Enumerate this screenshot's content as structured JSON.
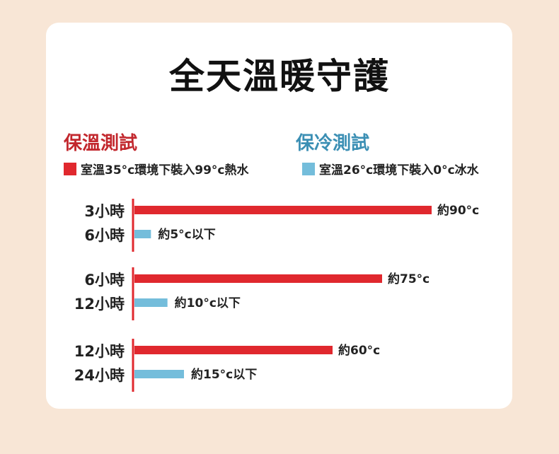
{
  "title": "全天溫暖守護",
  "hot_test": {
    "heading": "保溫測試",
    "legend": "室溫35°c環境下裝入99°c熱水",
    "color": "#e0282e"
  },
  "cold_test": {
    "heading": "保冷測試",
    "legend": "室溫26°c環境下裝入0°c冰水",
    "color": "#74bddb"
  },
  "chart_data": {
    "type": "bar",
    "orientation": "horizontal",
    "groups": [
      {
        "hot_label": "3小時",
        "cold_label": "6小時",
        "hot_value": 90,
        "cold_value": 5,
        "hot_text": "約90°c",
        "cold_text": "約5°c以下"
      },
      {
        "hot_label": "6小時",
        "cold_label": "12小時",
        "hot_value": 75,
        "cold_value": 10,
        "hot_text": "約75°c",
        "cold_text": "約10°c以下"
      },
      {
        "hot_label": "12小時",
        "cold_label": "24小時",
        "hot_value": 60,
        "cold_value": 15,
        "hot_text": "約60°c",
        "cold_text": "約15°c以下"
      }
    ],
    "xlim": [
      0,
      90
    ]
  }
}
